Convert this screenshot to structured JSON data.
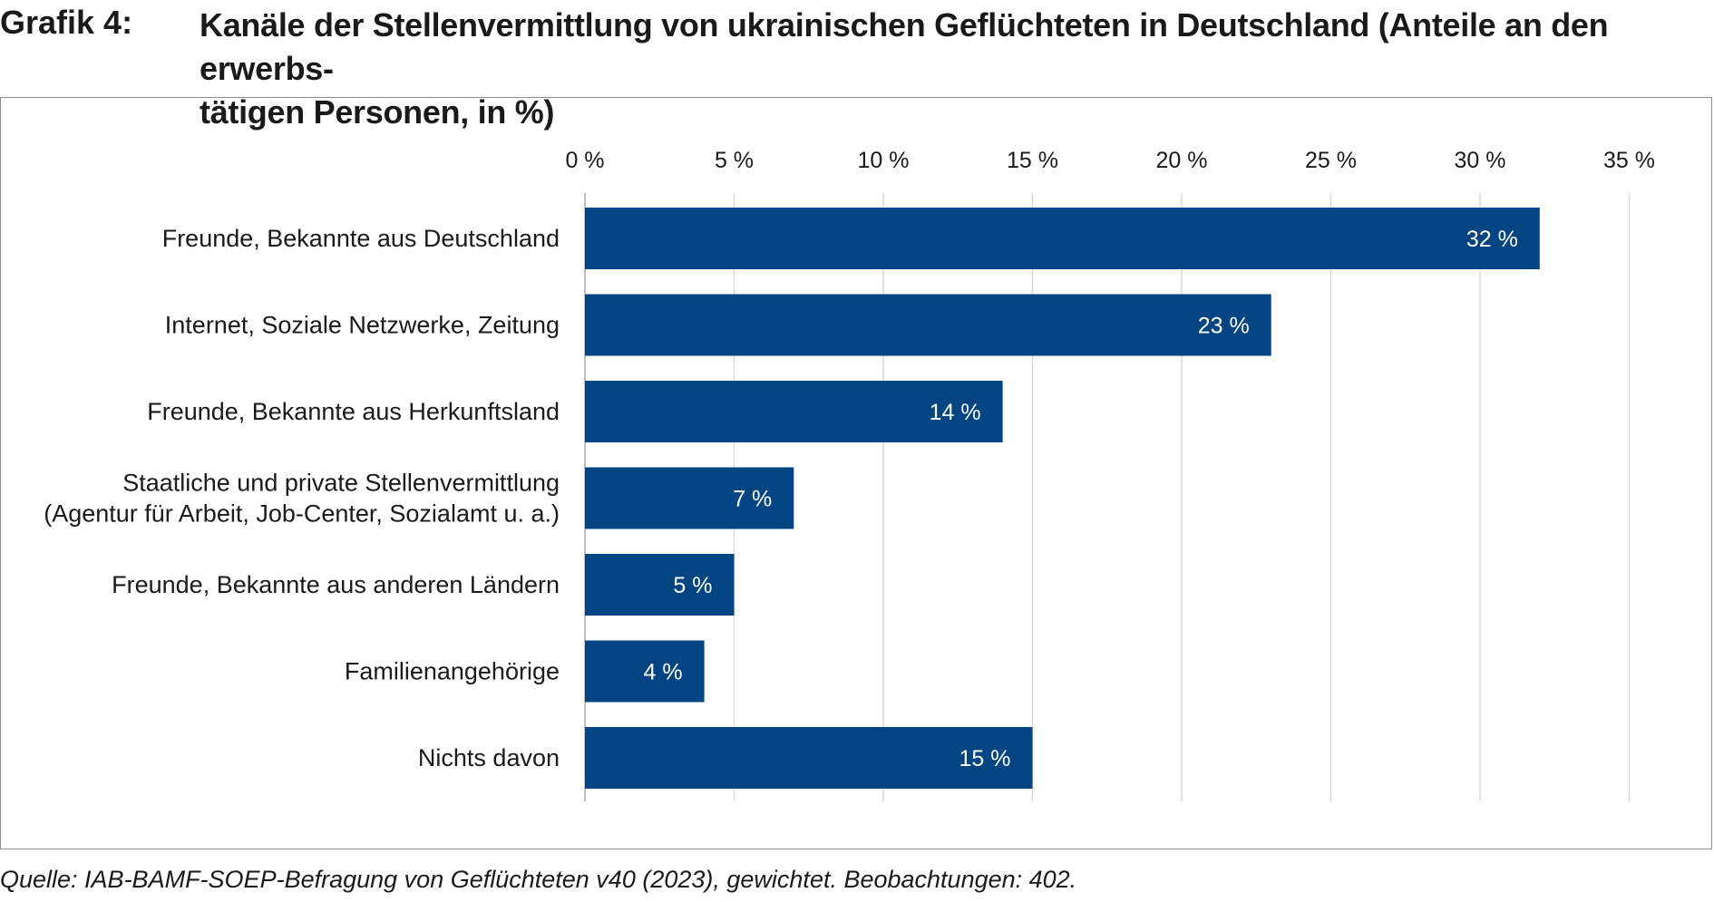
{
  "header": {
    "number": "Grafik 4:",
    "title_line1": "Kanäle der Stellenvermittlung von ukrainischen Geflüchteten in Deutschland (Anteile an den erwerbs-",
    "title_line2": "tätigen Personen, in %)"
  },
  "source": "Quelle: IAB-BAMF-SOEP-Befragung von Geflüchteten v40 (2023), gewichtet. Beobachtungen: 402.",
  "colors": {
    "bar": "#034483",
    "grid": "#d9d9d9",
    "axis": "#bfbfbf",
    "frame": "#8c8c8c"
  },
  "chart_data": {
    "type": "bar",
    "orientation": "horizontal",
    "categories": [
      [
        "Freunde, Bekannte aus Deutschland"
      ],
      [
        "Internet, Soziale Netzwerke, Zeitung"
      ],
      [
        "Freunde, Bekannte aus Herkunftsland"
      ],
      [
        "Staatliche und private Stellenvermittlung",
        "(Agentur für Arbeit, Job-Center, Sozialamt u. a.)"
      ],
      [
        "Freunde, Bekannte aus anderen Ländern"
      ],
      [
        "Familienangehörige"
      ],
      [
        "Nichts davon"
      ]
    ],
    "values": [
      32,
      23,
      14,
      7,
      5,
      4,
      15
    ],
    "value_labels": [
      "32 %",
      "23 %",
      "14 %",
      "7 %",
      "5 %",
      "4 %",
      "15 %"
    ],
    "xlim": [
      0,
      35
    ],
    "ticks": [
      0,
      5,
      10,
      15,
      20,
      25,
      30,
      35
    ],
    "tick_labels": [
      "0 %",
      "5 %",
      "10 %",
      "15 %",
      "20 %",
      "25 %",
      "30 %",
      "35 %"
    ],
    "axis_position": "top",
    "grid": true
  }
}
